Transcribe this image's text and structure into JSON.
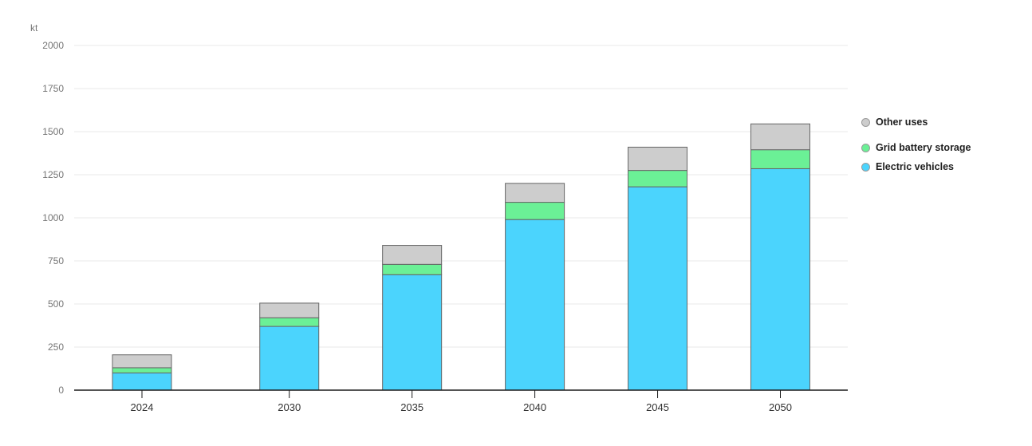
{
  "page": {
    "background": "#ffffff"
  },
  "chart_data": {
    "type": "bar",
    "stacked": true,
    "title": "",
    "unit_label": "kt",
    "categories": [
      "2024",
      "2030",
      "2035",
      "2040",
      "2045",
      "2050"
    ],
    "x_years": [
      2024,
      2030,
      2035,
      2040,
      2045,
      2050
    ],
    "series": [
      {
        "name": "Electric vehicles",
        "color": "#4bd4fd",
        "values": [
          100,
          370,
          670,
          990,
          1180,
          1285
        ]
      },
      {
        "name": "Grid battery storage",
        "color": "#6bf096",
        "values": [
          30,
          50,
          60,
          100,
          95,
          110
        ]
      },
      {
        "name": "Other uses",
        "color": "#cdcdcd",
        "values": [
          75,
          85,
          110,
          110,
          135,
          150
        ]
      }
    ],
    "totals": [
      205,
      505,
      840,
      1200,
      1410,
      1545
    ],
    "ylim": [
      0,
      2000
    ],
    "yticks": [
      0,
      250,
      500,
      750,
      1000,
      1250,
      1500,
      1750,
      2000
    ],
    "grid": true,
    "legend_position": "right",
    "legend": [
      {
        "label": "Other uses",
        "color": "#cdcdcd"
      },
      {
        "label": "Grid battery storage",
        "color": "#6bf096"
      },
      {
        "label": "Electric vehicles",
        "color": "#4bd4fd"
      }
    ],
    "colors": {
      "bar_border": "#666666",
      "gridline": "#e9e9e9",
      "axis_line": "#1a1a1a",
      "y_tick_label": "#757575",
      "x_tick_label": "#333333",
      "unit_label": "#757575"
    }
  }
}
